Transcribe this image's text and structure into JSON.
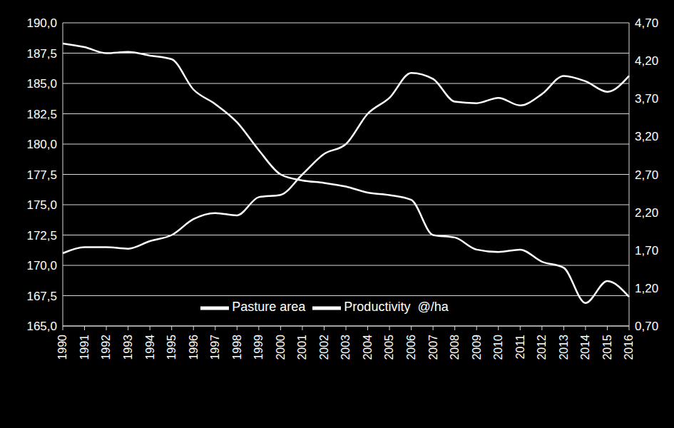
{
  "chart_data": {
    "type": "line",
    "categories": [
      "1990",
      "1991",
      "1992",
      "1993",
      "1994",
      "1995",
      "1996",
      "1997",
      "1998",
      "1999",
      "2000",
      "2001",
      "2002",
      "2003",
      "2004",
      "2005",
      "2006",
      "2007",
      "2008",
      "2009",
      "2010",
      "2011",
      "2012",
      "2013",
      "2014",
      "2015",
      "2016"
    ],
    "series": [
      {
        "name": "Pasture area",
        "color": "#ffffff",
        "values": [
          188.3,
          188.0,
          187.5,
          187.6,
          187.3,
          187.0,
          184.5,
          183.3,
          181.8,
          179.5,
          177.5,
          177.0,
          176.8,
          176.5,
          176.0,
          175.8,
          175.4,
          172.5,
          172.3,
          171.3,
          171.1,
          171.3,
          170.3,
          169.8,
          166.9,
          168.7,
          167.4
        ]
      },
      {
        "name": "Productivity  @/ha",
        "color": "#ffffff",
        "axis": "y2",
        "values": [
          1.66,
          1.74,
          1.74,
          1.72,
          1.82,
          1.9,
          2.11,
          2.19,
          2.16,
          2.4,
          2.43,
          2.7,
          2.97,
          3.1,
          3.5,
          3.71,
          4.04,
          3.96,
          3.66,
          3.64,
          3.71,
          3.61,
          3.76,
          4.0,
          3.93,
          3.79,
          4.0
        ]
      }
    ],
    "ylim": [
      165,
      190
    ],
    "yticks": [
      {
        "value": 165,
        "label": "165,0"
      },
      {
        "value": 167.5,
        "label": "167,5"
      },
      {
        "value": 170,
        "label": "170,0"
      },
      {
        "value": 172.5,
        "label": "172,5"
      },
      {
        "value": 175,
        "label": "175,0"
      },
      {
        "value": 177.5,
        "label": "177,5"
      },
      {
        "value": 180,
        "label": "180,0"
      },
      {
        "value": 182.5,
        "label": "182,5"
      },
      {
        "value": 185,
        "label": "185,0"
      },
      {
        "value": 187.5,
        "label": "187,5"
      },
      {
        "value": 190,
        "label": "190,0"
      }
    ],
    "y2lim": [
      0.7,
      4.7
    ],
    "y2ticks": [
      {
        "value": 0.7,
        "label": "0,70"
      },
      {
        "value": 1.2,
        "label": "1,20"
      },
      {
        "value": 1.7,
        "label": "1,70"
      },
      {
        "value": 2.2,
        "label": "2,20"
      },
      {
        "value": 2.7,
        "label": "2,70"
      },
      {
        "value": 3.2,
        "label": "3,20"
      },
      {
        "value": 3.7,
        "label": "3,70"
      },
      {
        "value": 4.2,
        "label": "4,20"
      },
      {
        "value": 4.7,
        "label": "4,70"
      }
    ],
    "grid": true,
    "legend": "bottom"
  }
}
